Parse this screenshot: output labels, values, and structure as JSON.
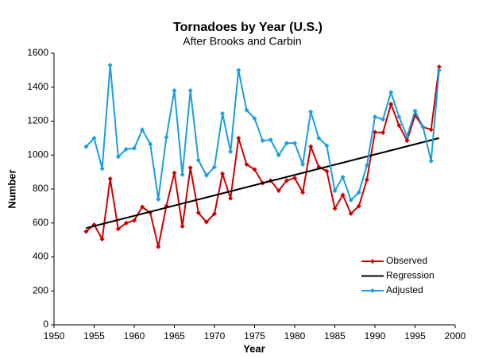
{
  "chart_data": {
    "type": "line",
    "title": "Tornadoes by Year (U.S.)",
    "subtitle": "After Brooks and Carbin",
    "x_label": "Year",
    "y_label": "Number",
    "x": [
      1954,
      1955,
      1956,
      1957,
      1958,
      1959,
      1960,
      1961,
      1962,
      1963,
      1964,
      1965,
      1966,
      1967,
      1968,
      1969,
      1970,
      1971,
      1972,
      1973,
      1974,
      1975,
      1976,
      1977,
      1978,
      1979,
      1980,
      1981,
      1982,
      1983,
      1984,
      1985,
      1986,
      1987,
      1988,
      1989,
      1990,
      1991,
      1992,
      1993,
      1994,
      1995,
      1996,
      1997,
      1998
    ],
    "series": [
      {
        "name": "Observed",
        "color": "#cc0000",
        "marker": true,
        "values": [
          550,
          590,
          505,
          860,
          565,
          600,
          615,
          695,
          660,
          460,
          700,
          895,
          580,
          925,
          660,
          605,
          655,
          890,
          745,
          1100,
          945,
          915,
          835,
          850,
          790,
          850,
          865,
          780,
          1050,
          930,
          905,
          685,
          765,
          655,
          700,
          855,
          1135,
          1132,
          1300,
          1175,
          1085,
          1235,
          1165,
          1150,
          1520
        ]
      },
      {
        "name": "Regression",
        "color": "#000000",
        "marker": false,
        "x": [
          1954,
          1998
        ],
        "values": [
          570,
          1100
        ]
      },
      {
        "name": "Adjusted",
        "color": "#1a9ee0",
        "marker": true,
        "values": [
          1050,
          1100,
          920,
          1530,
          990,
          1035,
          1040,
          1150,
          1065,
          740,
          1105,
          1380,
          885,
          1380,
          970,
          880,
          930,
          1245,
          1020,
          1500,
          1265,
          1215,
          1085,
          1090,
          1000,
          1070,
          1070,
          945,
          1255,
          1100,
          1055,
          790,
          870,
          735,
          780,
          940,
          1225,
          1210,
          1370,
          1225,
          1110,
          1260,
          1165,
          965,
          1500
        ]
      }
    ],
    "xlim": [
      1950,
      2000
    ],
    "xticks": [
      1950,
      1955,
      1960,
      1965,
      1970,
      1975,
      1980,
      1985,
      1990,
      1995,
      2000
    ],
    "ylim": [
      0,
      1600
    ],
    "yticks": [
      0,
      200,
      400,
      600,
      800,
      1000,
      1200,
      1400,
      1600
    ],
    "grid": false,
    "legend": "lower right"
  }
}
